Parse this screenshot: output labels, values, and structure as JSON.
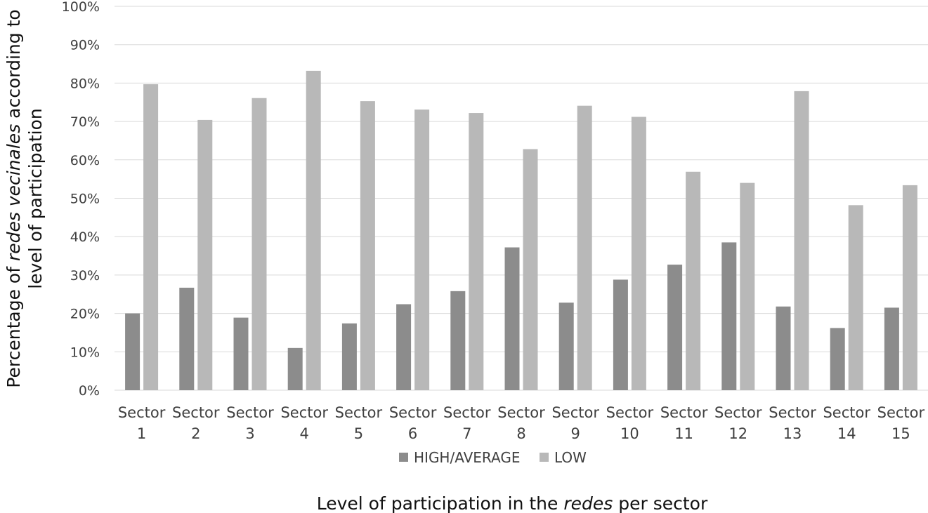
{
  "chart_data": {
    "type": "bar",
    "title": "",
    "categories": [
      [
        "Sector",
        "1"
      ],
      [
        "Sector",
        "2"
      ],
      [
        "Sector",
        "3"
      ],
      [
        "Sector",
        "4"
      ],
      [
        "Sector",
        "5"
      ],
      [
        "Sector",
        "6"
      ],
      [
        "Sector",
        "7"
      ],
      [
        "Sector",
        "8"
      ],
      [
        "Sector",
        "9"
      ],
      [
        "Sector",
        "10"
      ],
      [
        "Sector",
        "11"
      ],
      [
        "Sector",
        "12"
      ],
      [
        "Sector",
        "13"
      ],
      [
        "Sector",
        "14"
      ],
      [
        "Sector",
        "15"
      ]
    ],
    "series": [
      {
        "name": "HIGH/AVERAGE",
        "color": "#8c8c8c",
        "values": [
          20,
          26.7,
          18.9,
          11,
          17.4,
          22.4,
          25.8,
          37.2,
          22.8,
          28.8,
          32.7,
          38.5,
          21.8,
          16.2,
          21.5
        ]
      },
      {
        "name": "LOW",
        "color": "#b8b8b8",
        "values": [
          79.7,
          70.4,
          76.1,
          83.2,
          75.3,
          73.1,
          72.2,
          62.8,
          74.1,
          71.2,
          56.9,
          54,
          77.9,
          48.2,
          53.4
        ]
      }
    ],
    "ylim": [
      0,
      100
    ],
    "yticks": [
      0,
      10,
      20,
      30,
      40,
      50,
      60,
      70,
      80,
      90,
      100
    ],
    "ytick_format": "{v}%",
    "ylabel": {
      "line1": [
        {
          "text": "Percentage of ",
          "italic": false
        },
        {
          "text": "redes vecinales",
          "italic": true
        },
        {
          "text": " according to",
          "italic": false
        }
      ],
      "line2": [
        {
          "text": "level of participation",
          "italic": false
        }
      ]
    },
    "xlabel": [
      {
        "text": "Level of participation in the ",
        "italic": false
      },
      {
        "text": "redes",
        "italic": true
      },
      {
        "text": " per sector",
        "italic": false
      }
    ],
    "grid": true,
    "legend_position": "bottom"
  }
}
